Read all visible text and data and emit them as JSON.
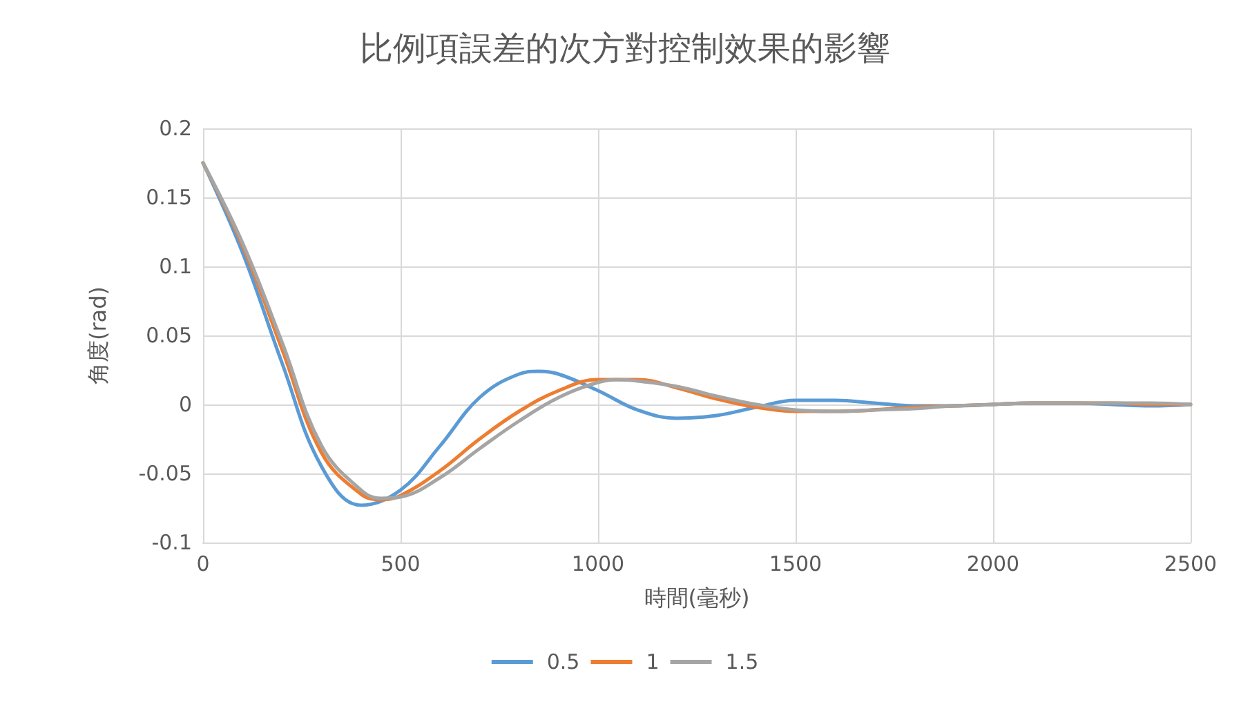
{
  "chart_data": {
    "type": "line",
    "title": "比例項誤差的次方對控制效果的影響",
    "xlabel": "時間(毫秒)",
    "ylabel": "角度(rad)",
    "xlim": [
      0,
      2500
    ],
    "xticks": [
      0,
      500,
      1000,
      1500,
      2000,
      2500
    ],
    "ylim": [
      -0.1,
      0.2
    ],
    "yticks": [
      -0.1,
      -0.05,
      0,
      0.05,
      0.1,
      0.15,
      0.2
    ],
    "grid": true,
    "legend": "bottom",
    "marker": "none",
    "line_style": "solid",
    "series": [
      {
        "name": "0.5",
        "color": "#5b9bd5",
        "x": [
          0,
          100,
          200,
          300,
          400,
          500,
          600,
          700,
          800,
          850,
          900,
          1000,
          1100,
          1200,
          1300,
          1400,
          1500,
          1600,
          1700,
          1800,
          1900,
          2000,
          2100,
          2200,
          2300,
          2400,
          2500
        ],
        "values": [
          0.175,
          0.11,
          0.03,
          -0.045,
          -0.073,
          -0.062,
          -0.03,
          0.005,
          0.022,
          0.024,
          0.022,
          0.01,
          -0.004,
          -0.01,
          -0.008,
          -0.002,
          0.003,
          0.003,
          0.001,
          -0.001,
          -0.001,
          0,
          0.001,
          0.001,
          0,
          -0.001,
          0
        ]
      },
      {
        "name": "1",
        "color": "#ed7d31",
        "x": [
          0,
          100,
          200,
          300,
          400,
          450,
          500,
          600,
          700,
          800,
          900,
          1000,
          1100,
          1200,
          1300,
          1400,
          1500,
          1600,
          1700,
          1800,
          1900,
          2000,
          2100,
          2200,
          2300,
          2400,
          2500
        ],
        "values": [
          0.175,
          0.115,
          0.04,
          -0.035,
          -0.065,
          -0.069,
          -0.066,
          -0.048,
          -0.025,
          -0.005,
          0.01,
          0.018,
          0.018,
          0.012,
          0.004,
          -0.002,
          -0.005,
          -0.005,
          null,
          -0.002,
          -0.001,
          0,
          0.001,
          0.001,
          0.001,
          0,
          0
        ]
      },
      {
        "name": "1.5",
        "color": "#a5a5a5",
        "x": [
          0,
          100,
          200,
          300,
          400,
          450,
          500,
          600,
          700,
          800,
          900,
          1000,
          1050,
          1100,
          1200,
          1300,
          1400,
          1500,
          1600,
          1700,
          1800,
          1900,
          2000,
          2100,
          2200,
          2300,
          2400,
          2500
        ],
        "values": [
          0.175,
          0.117,
          0.045,
          -0.03,
          -0.062,
          -0.068,
          -0.067,
          -0.053,
          -0.032,
          -0.012,
          0.005,
          0.016,
          0.018,
          0.017,
          0.013,
          0.006,
          0,
          -0.004,
          -0.005,
          -0.004,
          -0.003,
          -0.001,
          0,
          0.001,
          0.001,
          0.001,
          0.001,
          0
        ]
      }
    ]
  }
}
